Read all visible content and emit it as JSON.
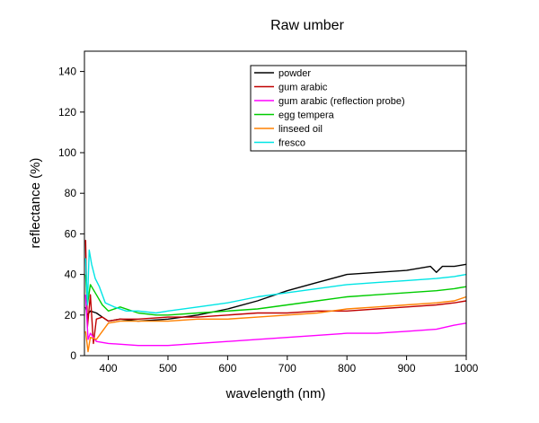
{
  "chart_data": {
    "type": "line",
    "title": "Raw umber",
    "xlabel": "wavelength (nm)",
    "ylabel": "reflectance (%)",
    "xlim": [
      360,
      1000
    ],
    "ylim": [
      0,
      150
    ],
    "xticks": [
      400,
      500,
      600,
      700,
      800,
      900,
      1000
    ],
    "yticks": [
      0,
      20,
      40,
      60,
      80,
      100,
      120,
      140
    ],
    "legend_position": "top-right",
    "series": [
      {
        "name": "powder",
        "color": "#000000",
        "x": [
          362,
          365,
          370,
          380,
          390,
          400,
          420,
          450,
          500,
          550,
          600,
          650,
          700,
          750,
          800,
          850,
          900,
          940,
          950,
          960,
          980,
          1000
        ],
        "y": [
          24,
          20,
          22,
          21,
          19,
          17,
          18,
          17,
          18,
          20,
          23,
          27,
          32,
          36,
          40,
          41,
          42,
          44,
          41,
          44,
          44,
          45
        ]
      },
      {
        "name": "gum arabic",
        "color": "#c00000",
        "x": [
          362,
          365,
          370,
          375,
          380,
          390,
          400,
          420,
          450,
          500,
          550,
          600,
          650,
          700,
          750,
          800,
          850,
          900,
          950,
          980,
          1000
        ],
        "y": [
          57,
          14,
          30,
          6,
          18,
          19,
          17,
          18,
          18,
          19,
          19,
          20,
          21,
          21,
          22,
          22,
          23,
          24,
          25,
          26,
          27
        ]
      },
      {
        "name": "gum arabic (reflection probe)",
        "color": "#ff00ff",
        "x": [
          362,
          366,
          370,
          380,
          400,
          450,
          500,
          550,
          600,
          650,
          700,
          750,
          800,
          850,
          900,
          950,
          980,
          1000
        ],
        "y": [
          30,
          8,
          11,
          7,
          6,
          5,
          5,
          6,
          7,
          8,
          9,
          10,
          11,
          11,
          12,
          13,
          15,
          16
        ]
      },
      {
        "name": "egg tempera",
        "color": "#00cc00",
        "x": [
          362,
          365,
          370,
          380,
          390,
          400,
          420,
          450,
          480,
          500,
          550,
          600,
          650,
          700,
          750,
          800,
          850,
          900,
          950,
          980,
          1000
        ],
        "y": [
          40,
          25,
          35,
          30,
          25,
          22,
          24,
          21,
          20,
          20,
          21,
          22,
          23,
          25,
          27,
          29,
          30,
          31,
          32,
          33,
          34
        ]
      },
      {
        "name": "linseed oil",
        "color": "#ff8000",
        "x": [
          362,
          366,
          370,
          380,
          390,
          400,
          420,
          450,
          500,
          550,
          600,
          650,
          700,
          750,
          800,
          850,
          900,
          950,
          980,
          1000
        ],
        "y": [
          12,
          2,
          9,
          8,
          12,
          16,
          17,
          17,
          17,
          18,
          18,
          19,
          20,
          21,
          23,
          24,
          25,
          26,
          27,
          29
        ]
      },
      {
        "name": "fresco",
        "color": "#00e5e5",
        "x": [
          362,
          365,
          368,
          372,
          378,
          385,
          395,
          410,
          430,
          450,
          480,
          500,
          550,
          600,
          650,
          700,
          750,
          800,
          850,
          900,
          950,
          980,
          1000
        ],
        "y": [
          48,
          25,
          52,
          45,
          38,
          34,
          26,
          24,
          22,
          22,
          21,
          22,
          24,
          26,
          29,
          31,
          33,
          35,
          36,
          37,
          38,
          39,
          40
        ]
      }
    ]
  }
}
